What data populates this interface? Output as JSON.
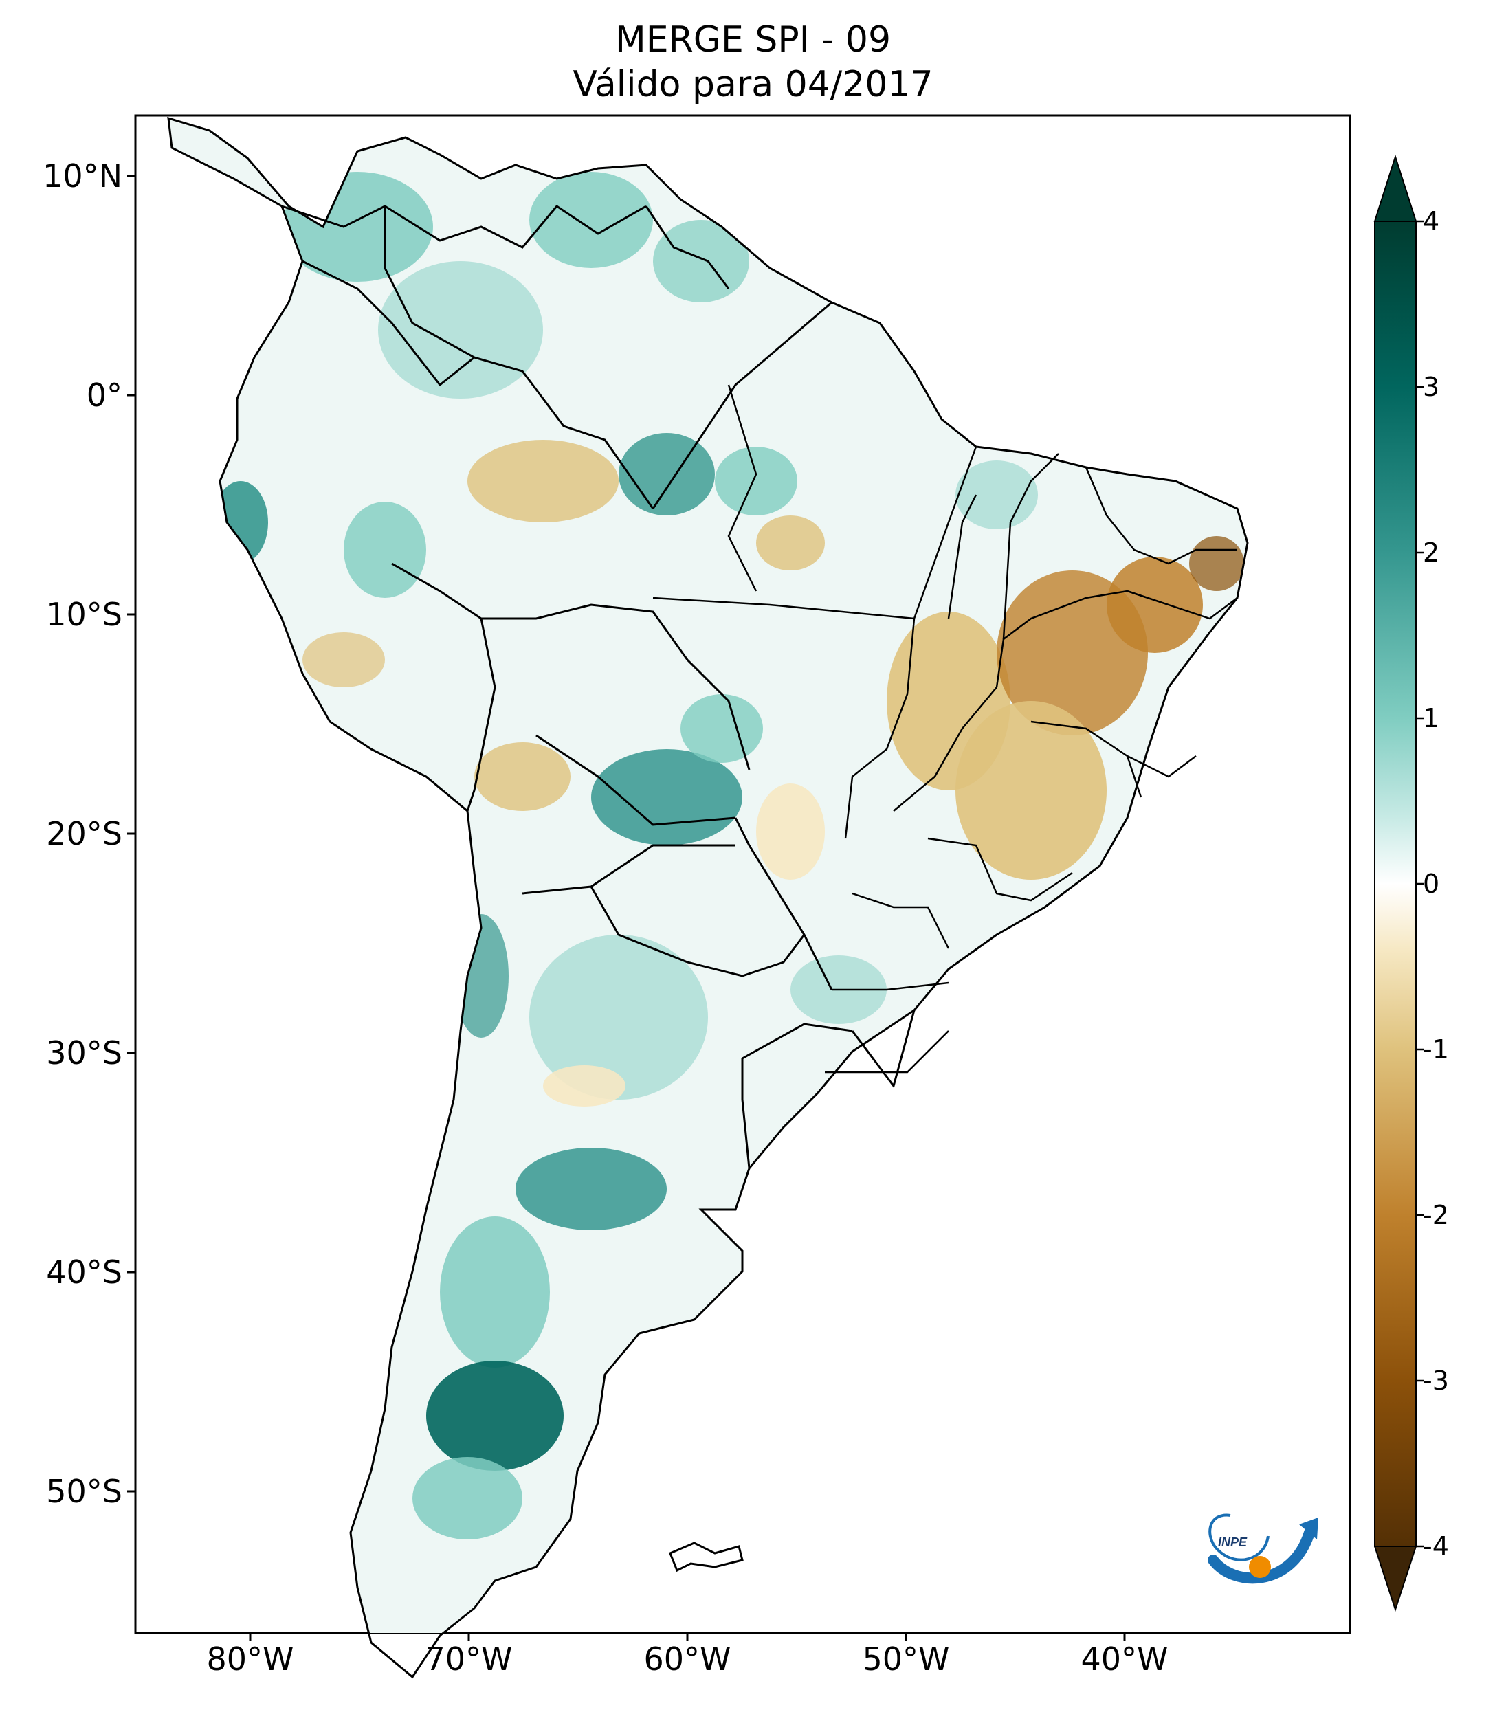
{
  "title": {
    "line1": "MERGE   SPI - 09",
    "line2": "Válido para 04/2017"
  },
  "map": {
    "region": "South America",
    "lon_range": [
      -85,
      -30
    ],
    "lat_range": [
      -56,
      13
    ],
    "lat_ticks": [
      {
        "value": 10,
        "label": "10°N"
      },
      {
        "value": 0,
        "label": "0°"
      },
      {
        "value": -10,
        "label": "10°S"
      },
      {
        "value": -20,
        "label": "20°S"
      },
      {
        "value": -30,
        "label": "30°S"
      },
      {
        "value": -40,
        "label": "40°S"
      },
      {
        "value": -50,
        "label": "50°S"
      }
    ],
    "lon_ticks": [
      {
        "value": -80,
        "label": "80°W"
      },
      {
        "value": -70,
        "label": "70°W"
      },
      {
        "value": -60,
        "label": "60°W"
      },
      {
        "value": -50,
        "label": "50°W"
      },
      {
        "value": -40,
        "label": "40°W"
      }
    ]
  },
  "colorbar": {
    "min": -4,
    "max": 4,
    "extend": "both",
    "ticks": [
      "4",
      "3",
      "2",
      "1",
      "0",
      "-1",
      "-2",
      "-3",
      "-4"
    ],
    "colors": {
      "min_end": "#3d2507",
      "dry_strong": "#8c510a",
      "dry_mid": "#bf812d",
      "dry_light": "#dfc27d",
      "dry_pale": "#f6e8c3",
      "neutral": "#ffffff",
      "wet_pale": "#c7eae5",
      "wet_light": "#80cdc1",
      "wet_mid": "#35978f",
      "wet_strong": "#01665e",
      "max_end": "#003c30"
    }
  },
  "logo": {
    "text": "INPE",
    "colors": {
      "arrow": "#1a6fb4",
      "dot": "#f08c00"
    }
  }
}
